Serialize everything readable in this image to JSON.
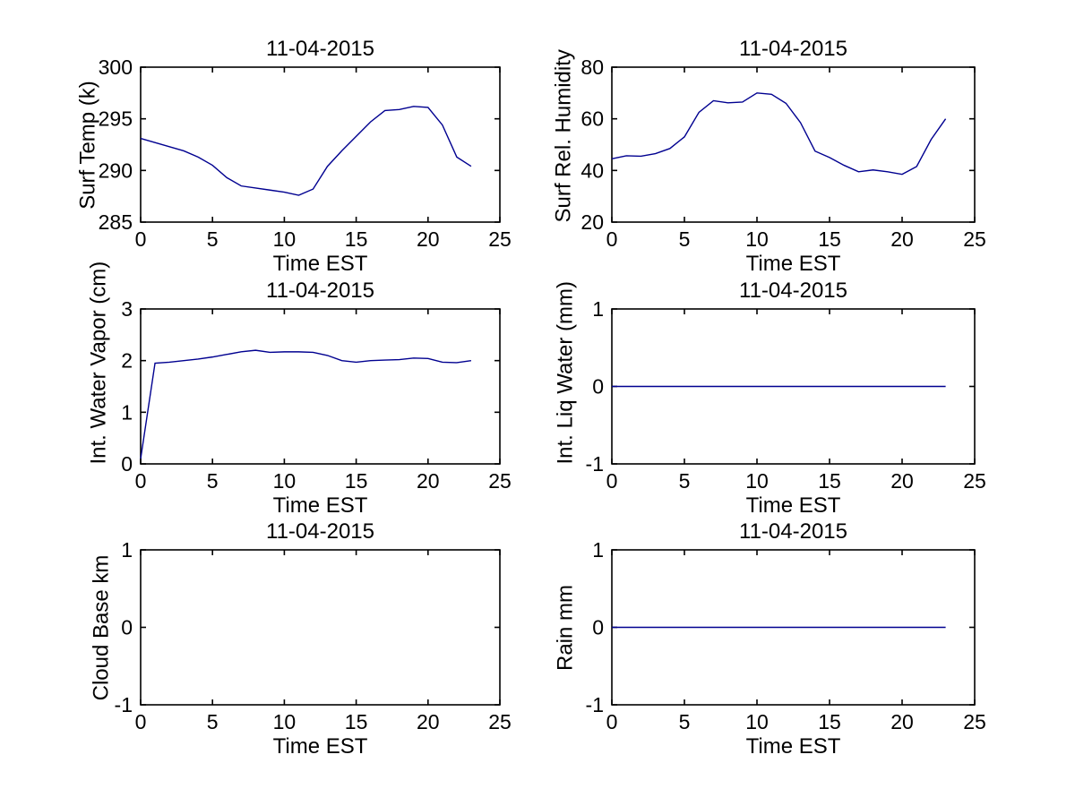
{
  "figure": {
    "background": "#ffffff",
    "date": "11-04-2015"
  },
  "colors": {
    "line": "#000090",
    "axis": "#000000",
    "text": "#000000"
  },
  "chart_data": [
    {
      "type": "line",
      "title": "11-04-2015",
      "xlabel": "Time EST",
      "ylabel": "Surf Temp (k)",
      "xlim": [
        0,
        25
      ],
      "ylim": [
        285,
        300
      ],
      "xticks": [
        0,
        5,
        10,
        15,
        20,
        25
      ],
      "yticks": [
        285,
        290,
        295,
        300
      ],
      "grid": false,
      "legend": null,
      "x": [
        0,
        1,
        2,
        3,
        4,
        5,
        6,
        7,
        8,
        9,
        10,
        11,
        12,
        13,
        14,
        15,
        16,
        17,
        18,
        19,
        20,
        21,
        22,
        23
      ],
      "y": [
        293.1,
        292.7,
        292.3,
        291.9,
        291.3,
        290.5,
        289.3,
        288.5,
        288.3,
        288.1,
        287.9,
        287.6,
        288.2,
        290.4,
        291.9,
        293.3,
        294.7,
        295.8,
        295.9,
        296.2,
        296.1,
        294.4,
        291.3,
        290.4
      ]
    },
    {
      "type": "line",
      "title": "11-04-2015",
      "xlabel": "Time EST",
      "ylabel": "Surf Rel. Humidity",
      "xlim": [
        0,
        25
      ],
      "ylim": [
        20,
        80
      ],
      "xticks": [
        0,
        5,
        10,
        15,
        20,
        25
      ],
      "yticks": [
        20,
        40,
        60,
        80
      ],
      "grid": false,
      "legend": null,
      "x": [
        0,
        1,
        2,
        3,
        4,
        5,
        6,
        7,
        8,
        9,
        10,
        11,
        12,
        13,
        14,
        15,
        16,
        17,
        18,
        19,
        20,
        21,
        22,
        23
      ],
      "y": [
        44.5,
        45.7,
        45.5,
        46.5,
        48.5,
        53,
        62.5,
        67,
        66.2,
        66.5,
        70,
        69.5,
        66,
        58.5,
        47.5,
        45,
        42,
        39.5,
        40.2,
        39.5,
        38.5,
        41.5,
        52,
        60
      ]
    },
    {
      "type": "line",
      "title": "11-04-2015",
      "xlabel": "Time EST",
      "ylabel": "Int. Water Vapor (cm)",
      "xlim": [
        0,
        25
      ],
      "ylim": [
        0,
        3
      ],
      "xticks": [
        0,
        5,
        10,
        15,
        20,
        25
      ],
      "yticks": [
        0,
        1,
        2,
        3
      ],
      "grid": false,
      "legend": null,
      "x": [
        0,
        1,
        2,
        3,
        4,
        5,
        6,
        7,
        8,
        9,
        10,
        11,
        12,
        13,
        14,
        15,
        16,
        17,
        18,
        19,
        20,
        21,
        22,
        23
      ],
      "y": [
        0.1,
        1.95,
        1.97,
        2.0,
        2.03,
        2.07,
        2.12,
        2.17,
        2.2,
        2.16,
        2.17,
        2.17,
        2.16,
        2.1,
        2.0,
        1.97,
        2.0,
        2.01,
        2.02,
        2.05,
        2.04,
        1.97,
        1.96,
        2.0
      ]
    },
    {
      "type": "line",
      "title": "11-04-2015",
      "xlabel": "Time EST",
      "ylabel": "Int. Liq Water (mm)",
      "xlim": [
        0,
        25
      ],
      "ylim": [
        -1,
        1
      ],
      "xticks": [
        0,
        5,
        10,
        15,
        20,
        25
      ],
      "yticks": [
        -1,
        0,
        1
      ],
      "grid": false,
      "legend": null,
      "x": [
        0,
        1,
        2,
        3,
        4,
        5,
        6,
        7,
        8,
        9,
        10,
        11,
        12,
        13,
        14,
        15,
        16,
        17,
        18,
        19,
        20,
        21,
        22,
        23
      ],
      "y": [
        0,
        0,
        0,
        0,
        0,
        0,
        0,
        0,
        0,
        0,
        0,
        0,
        0,
        0,
        0,
        0,
        0,
        0,
        0,
        0,
        0,
        0,
        0,
        0
      ]
    },
    {
      "type": "line",
      "title": "11-04-2015",
      "xlabel": "Time EST",
      "ylabel": "Cloud Base km",
      "xlim": [
        0,
        25
      ],
      "ylim": [
        -1,
        1
      ],
      "xticks": [
        0,
        5,
        10,
        15,
        20,
        25
      ],
      "yticks": [
        -1,
        0,
        1
      ],
      "grid": false,
      "legend": null,
      "x": [],
      "y": null
    },
    {
      "type": "line",
      "title": "11-04-2015",
      "xlabel": "Time EST",
      "ylabel": "Rain mm",
      "xlim": [
        0,
        25
      ],
      "ylim": [
        -1,
        1
      ],
      "xticks": [
        0,
        5,
        10,
        15,
        20,
        25
      ],
      "yticks": [
        -1,
        0,
        1
      ],
      "grid": false,
      "legend": null,
      "x": [
        0,
        1,
        2,
        3,
        4,
        5,
        6,
        7,
        8,
        9,
        10,
        11,
        12,
        13,
        14,
        15,
        16,
        17,
        18,
        19,
        20,
        21,
        22,
        23
      ],
      "y": [
        0,
        0,
        0,
        0,
        0,
        0,
        0,
        0,
        0,
        0,
        0,
        0,
        0,
        0,
        0,
        0,
        0,
        0,
        0,
        0,
        0,
        0,
        0,
        0
      ]
    }
  ]
}
